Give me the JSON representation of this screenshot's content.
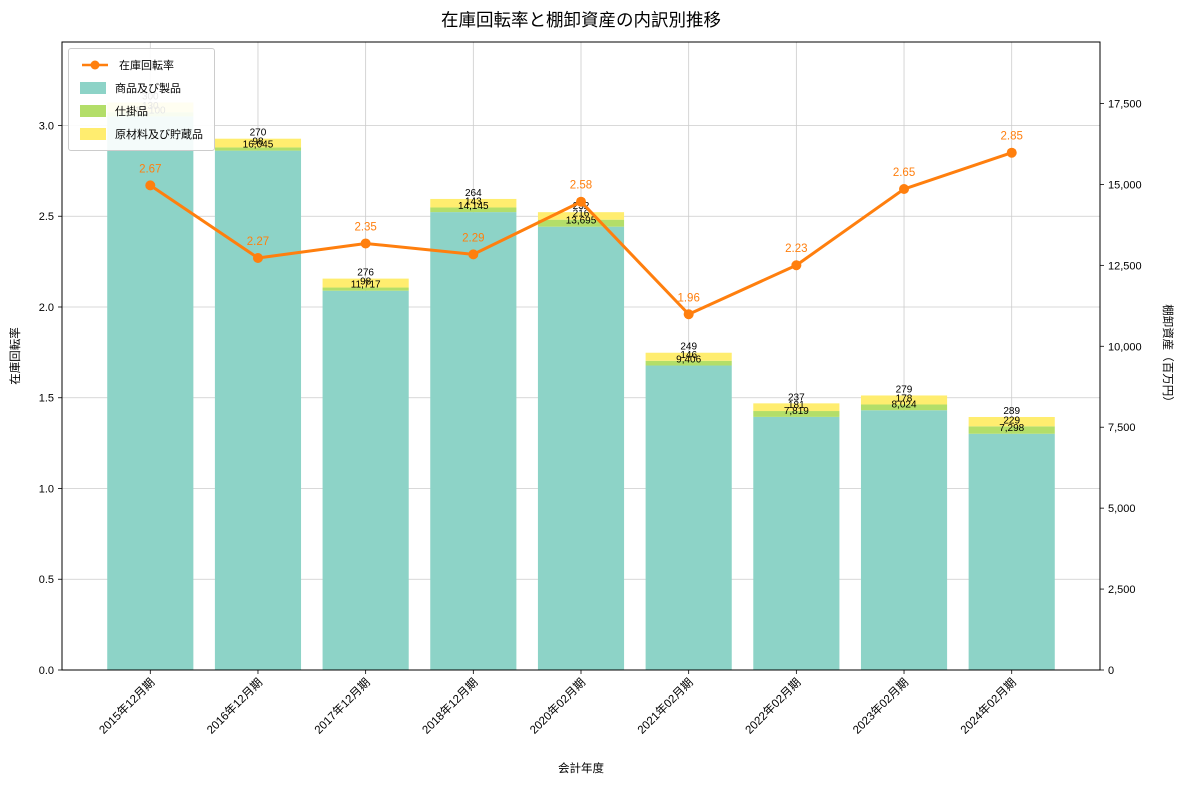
{
  "figure": {
    "title": "在庫回転率と棚卸資産の内訳別推移",
    "xlabel": "会計年度",
    "ylabel_left": "在庫回転率",
    "ylabel_right": "棚卸資産（百万円）"
  },
  "legend": {
    "items": [
      {
        "label": "在庫回転率",
        "type": "line",
        "color": "#ff7f0e"
      },
      {
        "label": "商品及び製品",
        "type": "patch",
        "color": "#8dd3c7"
      },
      {
        "label": "仕掛品",
        "type": "patch",
        "color": "#b3de69"
      },
      {
        "label": "原材料及び貯蔵品",
        "type": "patch",
        "color": "#ffed6f"
      }
    ]
  },
  "chart_data": {
    "type": "combo_stacked_bar_line",
    "title": "在庫回転率と棚卸資産の内訳別推移",
    "xlabel": "会計年度",
    "categories": [
      "2015年12月期",
      "2016年12月期",
      "2017年12月期",
      "2018年12月期",
      "2020年02月期",
      "2021年02月期",
      "2022年02月期",
      "2023年02月期",
      "2024年02月期"
    ],
    "series": [
      {
        "name": "商品及び製品",
        "type": "bar",
        "axis": "right",
        "color": "#8dd3c7",
        "values": [
          17100,
          16045,
          11717,
          14145,
          13695,
          9406,
          7819,
          8024,
          7298
        ]
      },
      {
        "name": "仕掛品",
        "type": "bar",
        "axis": "right",
        "color": "#b3de69",
        "values": [
          130,
          98,
          98,
          143,
          216,
          146,
          181,
          178,
          229
        ]
      },
      {
        "name": "原材料及び貯蔵品",
        "type": "bar",
        "axis": "right",
        "color": "#ffed6f",
        "values": [
          300,
          270,
          276,
          264,
          232,
          249,
          237,
          279,
          289
        ]
      },
      {
        "name": "在庫回転率",
        "type": "line",
        "axis": "left",
        "color": "#ff7f0e",
        "values": [
          2.67,
          2.27,
          2.35,
          2.29,
          2.58,
          1.96,
          2.23,
          2.65,
          2.85
        ]
      }
    ],
    "left_axis": {
      "label": "在庫回転率",
      "ticks": [
        0,
        0.5,
        1,
        1.5,
        2,
        2.5,
        3
      ],
      "max": 3.46
    },
    "right_axis": {
      "label": "棚卸資産（百万円）",
      "ticks": [
        0,
        2500,
        5000,
        7500,
        10000,
        12500,
        15000,
        17500
      ],
      "max": 19400
    },
    "grid": true,
    "bar_stacked": true,
    "legend_position": "upper-left"
  }
}
